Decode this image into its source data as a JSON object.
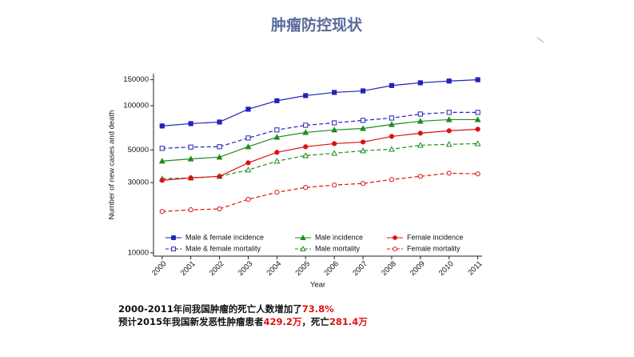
{
  "title": "肿瘤防控现状",
  "chart_data": {
    "type": "line",
    "x_label": "Year",
    "y_label": "Number of new cases and death",
    "x": [
      2000,
      2001,
      2002,
      2003,
      2004,
      2005,
      2006,
      2007,
      2008,
      2009,
      2010,
      2011
    ],
    "xlim": [
      1999.7,
      2011.15
    ],
    "xticks": [
      2000,
      2001,
      2002,
      2003,
      2004,
      2005,
      2006,
      2007,
      2008,
      2009,
      2010,
      2011
    ],
    "ylim": [
      9500,
      165000
    ],
    "yticks": [
      10000,
      30000,
      50000,
      100000,
      150000
    ],
    "y_scale": "log",
    "legend": "bottom",
    "series": [
      {
        "name": "Male & female incidence",
        "color": "#2222bb",
        "marker": "square",
        "filled": true,
        "dashed": false,
        "values": [
          72800,
          75500,
          77400,
          94600,
          108000,
          117000,
          123000,
          126000,
          137000,
          143000,
          147000,
          150000
        ]
      },
      {
        "name": "Male & female mortality",
        "color": "#2222bb",
        "marker": "square",
        "filled": false,
        "dashed": true,
        "values": [
          51300,
          52300,
          52600,
          60300,
          68400,
          73600,
          76400,
          79400,
          82400,
          87700,
          90000,
          90000
        ]
      },
      {
        "name": "Male incidence",
        "color": "#1e8a1e",
        "marker": "triangle",
        "filled": true,
        "dashed": false,
        "values": [
          42000,
          43500,
          44700,
          52600,
          61100,
          65800,
          68400,
          70000,
          74500,
          78400,
          80400,
          80400
        ]
      },
      {
        "name": "Male mortality",
        "color": "#1e8a1e",
        "marker": "triangle",
        "filled": false,
        "dashed": true,
        "values": [
          31900,
          32300,
          33100,
          36600,
          42000,
          45800,
          47500,
          49400,
          50600,
          53900,
          54600,
          55200
        ]
      },
      {
        "name": "Female incidence",
        "color": "#dd1111",
        "marker": "circle",
        "filled": true,
        "dashed": false,
        "values": [
          31100,
          32300,
          33100,
          40900,
          48200,
          52600,
          55200,
          56600,
          61800,
          65000,
          67500,
          69200
        ]
      },
      {
        "name": "Female mortality",
        "color": "#dd1111",
        "marker": "circle",
        "filled": false,
        "dashed": true,
        "values": [
          19100,
          19600,
          19900,
          23100,
          25800,
          27800,
          28900,
          29600,
          31500,
          33100,
          34800,
          34400
        ]
      }
    ]
  },
  "notes": [
    [
      {
        "text": "2000-2011年间我国肿瘤的死亡人数增加了",
        "color": "#111111"
      },
      {
        "text": "73.8%",
        "color": "#e01010"
      }
    ],
    [
      {
        "text": "预计2015年我国新发恶性肿瘤患者",
        "color": "#111111"
      },
      {
        "text": "429.2万",
        "color": "#e01010"
      },
      {
        "text": "，死亡",
        "color": "#111111"
      },
      {
        "text": "281.4万",
        "color": "#e01010"
      }
    ]
  ]
}
